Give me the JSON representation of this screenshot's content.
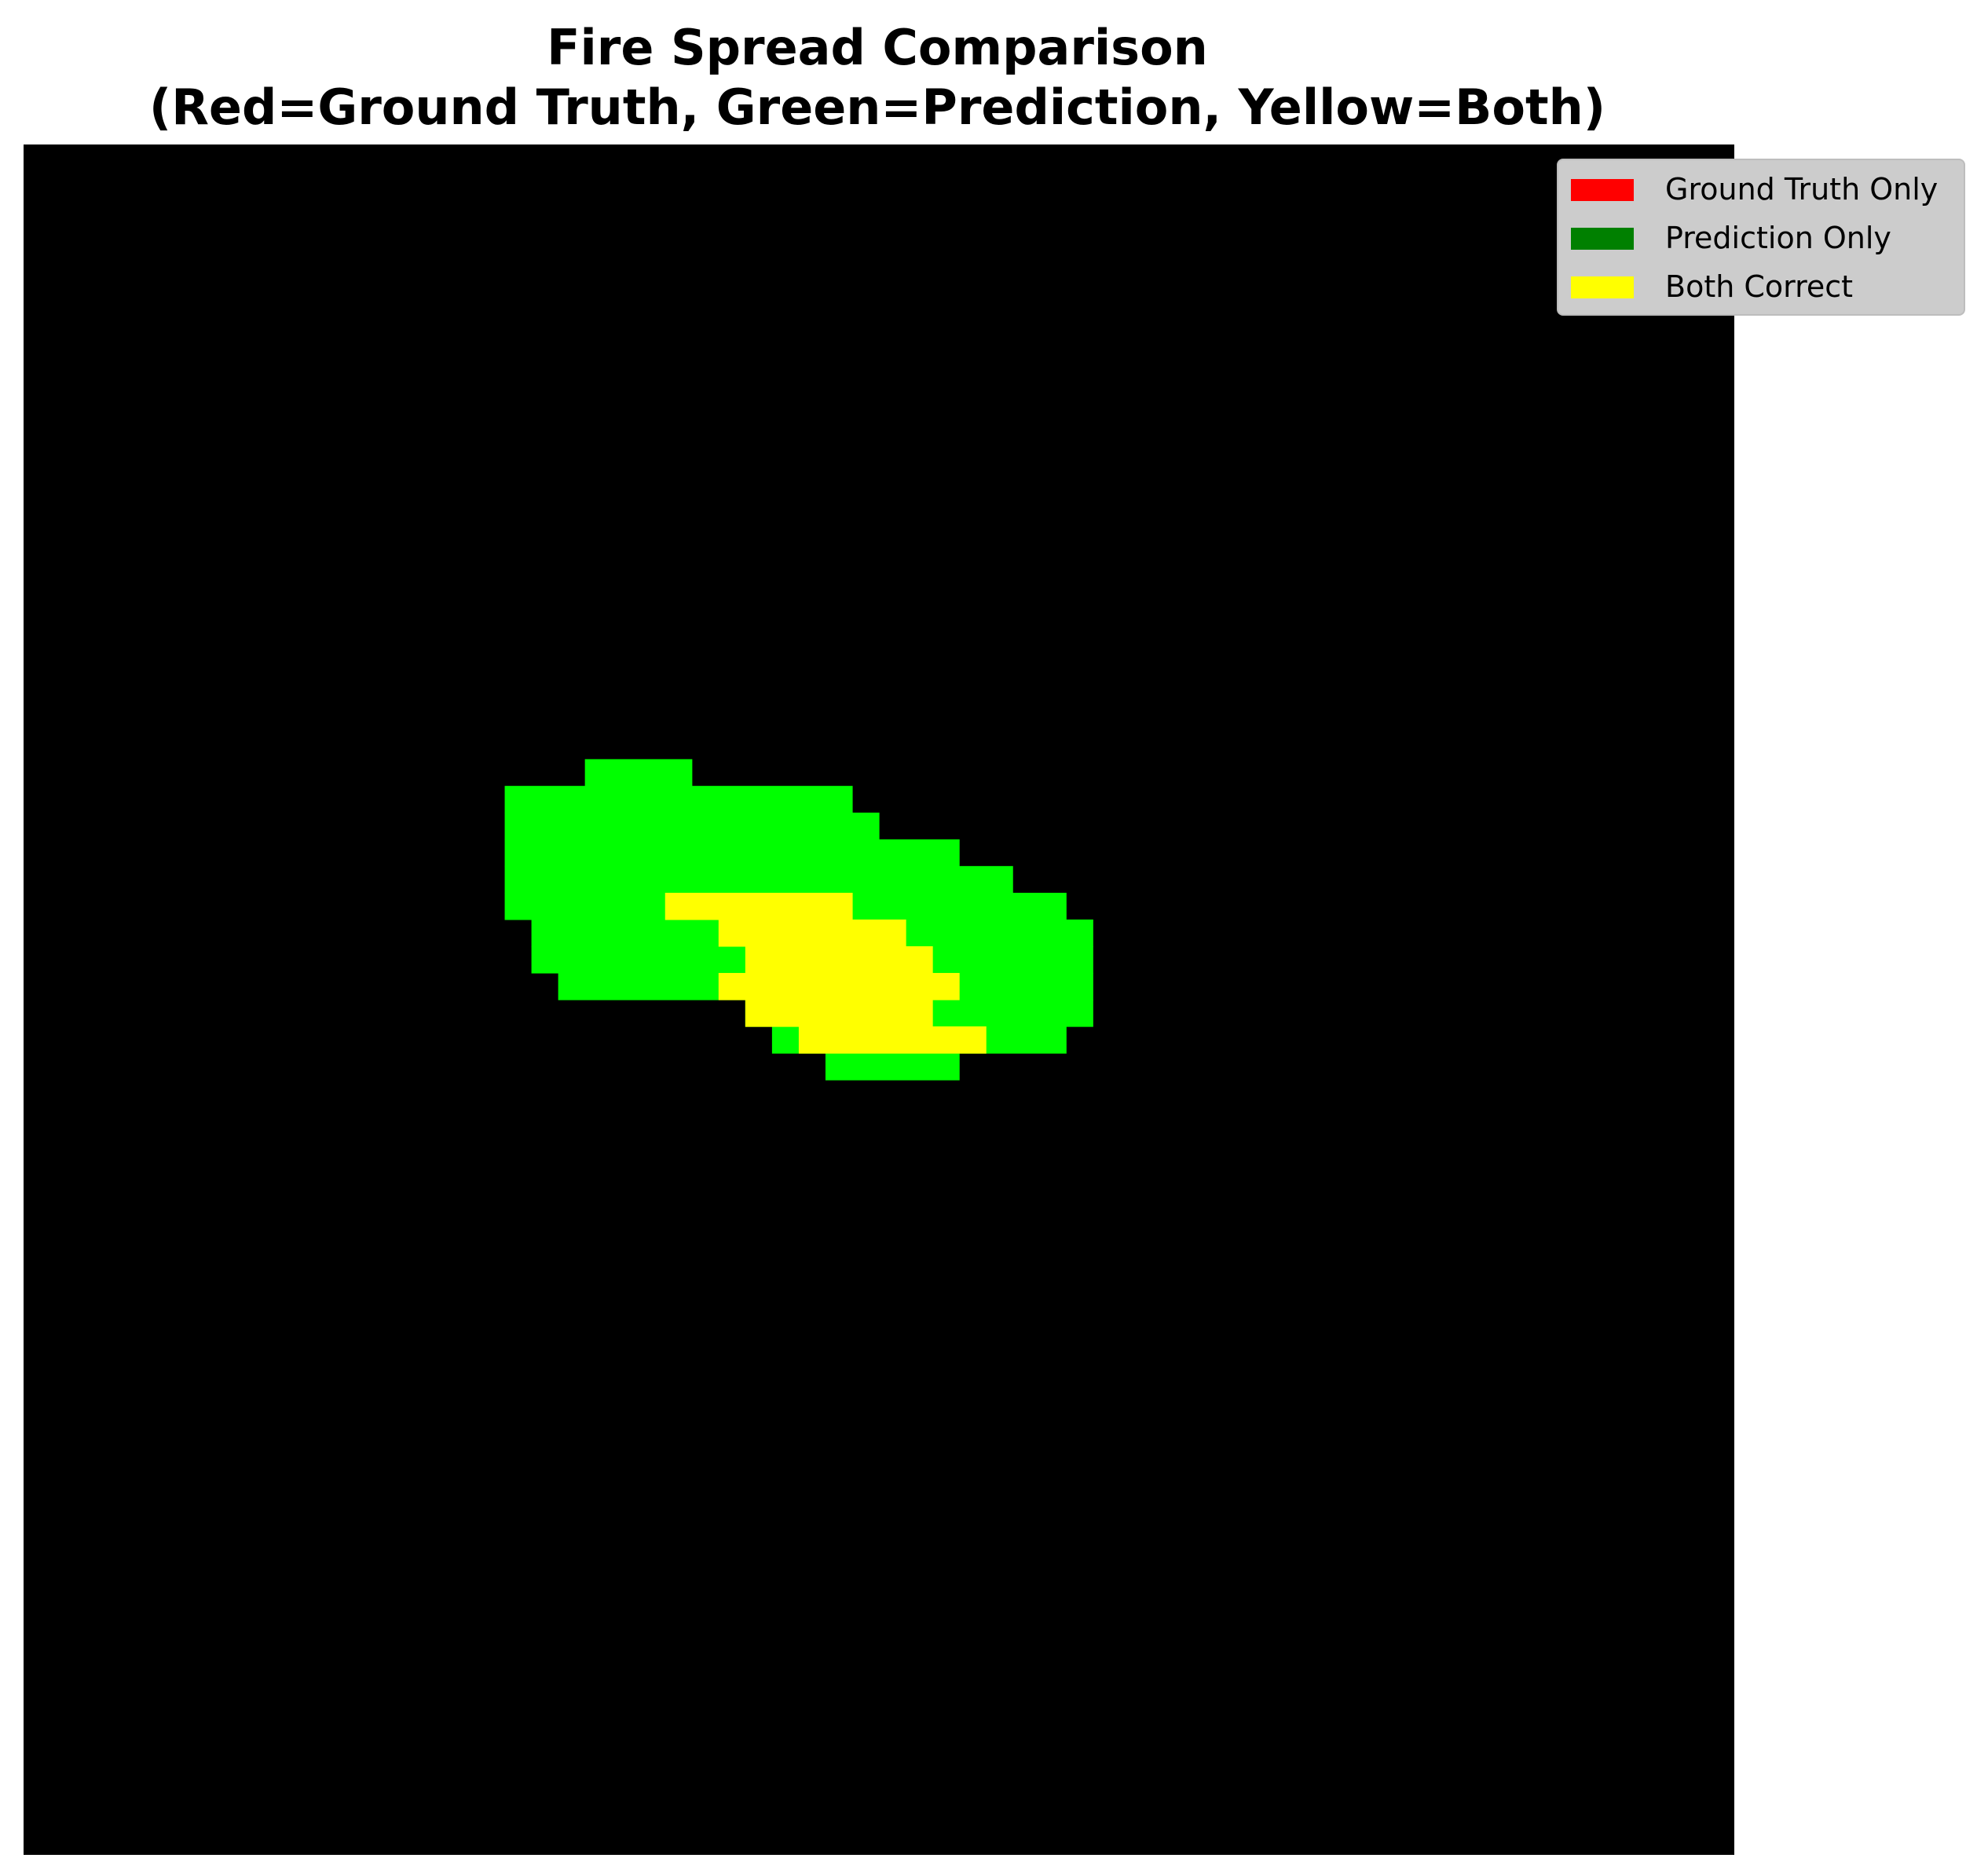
{
  "chart_data": {
    "type": "heatmap",
    "title_lines": [
      "Fire Spread Comparison",
      "(Red=Ground Truth, Green=Prediction, Yellow=Both)"
    ],
    "grid_size": 64,
    "axes_visible": false,
    "colors": {
      "background": "#000000",
      "prediction": "#00ff00",
      "both": "#ffff00",
      "ground_truth": "#ff0000"
    },
    "prediction_row_spans": [
      {
        "row": 23,
        "start": 21,
        "end": 24
      },
      {
        "row": 24,
        "start": 18,
        "end": 30
      },
      {
        "row": 25,
        "start": 18,
        "end": 31
      },
      {
        "row": 26,
        "start": 18,
        "end": 34
      },
      {
        "row": 27,
        "start": 18,
        "end": 36
      },
      {
        "row": 28,
        "start": 18,
        "end": 38
      },
      {
        "row": 29,
        "start": 19,
        "end": 39
      },
      {
        "row": 30,
        "start": 19,
        "end": 39
      },
      {
        "row": 31,
        "start": 20,
        "end": 39
      },
      {
        "row": 32,
        "start": 27,
        "end": 39
      },
      {
        "row": 33,
        "start": 28,
        "end": 38
      },
      {
        "row": 34,
        "start": 30,
        "end": 34
      }
    ],
    "both_row_spans": [
      {
        "row": 28,
        "start": 24,
        "end": 30
      },
      {
        "row": 29,
        "start": 26,
        "end": 32
      },
      {
        "row": 30,
        "start": 27,
        "end": 33
      },
      {
        "row": 31,
        "start": 26,
        "end": 34
      },
      {
        "row": 32,
        "start": 27,
        "end": 33
      },
      {
        "row": 33,
        "start": 29,
        "end": 35
      }
    ],
    "ground_truth_only_row_spans": [],
    "legend": {
      "placement": "top-right",
      "entries": [
        {
          "label": "Ground Truth Only",
          "color": "#ff0000"
        },
        {
          "label": "Prediction Only",
          "color": "#008000"
        },
        {
          "label": "Both Correct",
          "color": "#ffff00"
        }
      ]
    }
  }
}
